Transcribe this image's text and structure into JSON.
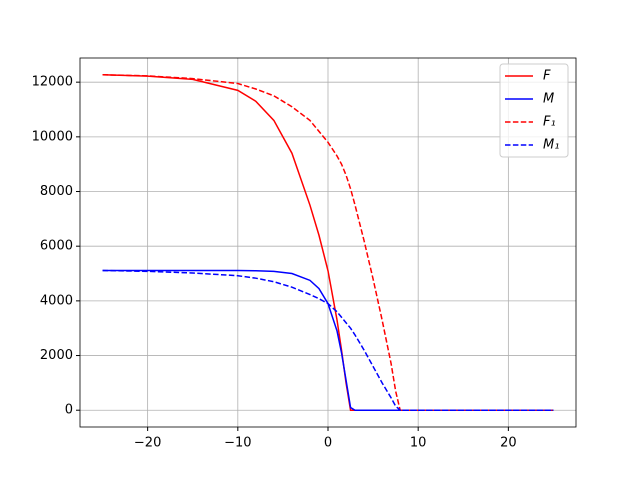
{
  "chart_data": {
    "type": "line",
    "x": [
      -25,
      -20,
      -15,
      -10,
      -8,
      -6,
      -4,
      -2,
      -1,
      0,
      1,
      1.5,
      2,
      2.5,
      3,
      4,
      5,
      6,
      7,
      7.5,
      8,
      10,
      15,
      20,
      25
    ],
    "series": [
      {
        "name": "F",
        "color": "#ff0000",
        "linestyle": "solid",
        "values": [
          12270,
          12220,
          12100,
          11700,
          11300,
          10600,
          9400,
          7500,
          6400,
          5100,
          3300,
          2200,
          1000,
          0,
          0,
          0,
          0,
          0,
          0,
          0,
          0,
          0,
          0,
          0,
          0
        ]
      },
      {
        "name": "M",
        "color": "#0000ff",
        "linestyle": "solid",
        "values": [
          5110,
          5110,
          5110,
          5110,
          5100,
          5080,
          5000,
          4750,
          4450,
          3900,
          2900,
          2100,
          1100,
          100,
          0,
          0,
          0,
          0,
          0,
          0,
          0,
          0,
          0,
          0,
          0
        ]
      },
      {
        "name": "F₁",
        "color": "#ff0000",
        "linestyle": "dashed",
        "values": [
          12270,
          12230,
          12130,
          11950,
          11750,
          11500,
          11100,
          10600,
          10200,
          9800,
          9300,
          9000,
          8600,
          8100,
          7500,
          6200,
          4800,
          3300,
          1700,
          700,
          0,
          0,
          0,
          0,
          0
        ]
      },
      {
        "name": "M₁",
        "color": "#0000ff",
        "linestyle": "dashed",
        "values": [
          5110,
          5080,
          5020,
          4920,
          4830,
          4700,
          4500,
          4230,
          4080,
          3900,
          3600,
          3400,
          3200,
          3000,
          2750,
          2200,
          1600,
          1000,
          450,
          150,
          0,
          0,
          0,
          0,
          0
        ]
      }
    ],
    "xlim": [
      -27.5,
      27.5
    ],
    "xticks": [
      {
        "value": -20,
        "label": "−20"
      },
      {
        "value": -10,
        "label": "−10"
      },
      0,
      10,
      20
    ],
    "ylim": [
      -614,
      12884
    ],
    "yticks": [
      0,
      2000,
      4000,
      6000,
      8000,
      10000,
      12000
    ],
    "grid": true,
    "legend": "upper right"
  }
}
